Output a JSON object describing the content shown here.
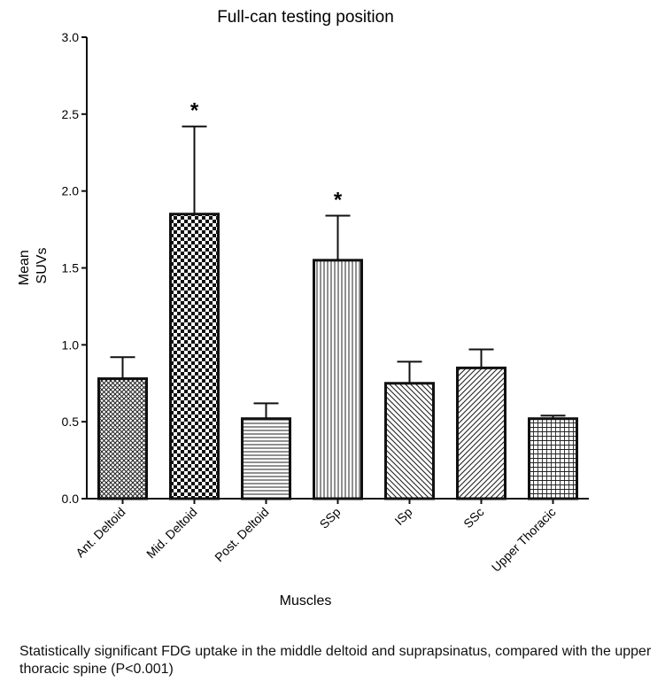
{
  "chart_data": {
    "type": "bar",
    "title": "Full-can testing position",
    "xlabel": "Muscles",
    "ylabel": [
      "Mean",
      "SUVs"
    ],
    "ylim": [
      0,
      3.0
    ],
    "yticks": [
      "0.0",
      "0.5",
      "1.0",
      "1.5",
      "2.0",
      "2.5",
      "3.0"
    ],
    "categories": [
      "Ant. Deltoid",
      "Mid. Deltoid",
      "Post. Deltoid",
      "SSp",
      "ISp",
      "SSc",
      "Upper Thoracic"
    ],
    "values": [
      0.78,
      1.85,
      0.52,
      1.55,
      0.75,
      0.85,
      0.52
    ],
    "error_upper": [
      0.92,
      2.42,
      0.62,
      1.84,
      0.89,
      0.97,
      0.54
    ],
    "significance": [
      "",
      "*",
      "",
      "*",
      "",
      "",
      ""
    ],
    "patterns": [
      "crosshatch-fine",
      "checkerboard",
      "horizontal-lines",
      "vertical-lines",
      "diagonal-down",
      "diagonal-up",
      "grid"
    ],
    "grid": false,
    "legend": "none"
  },
  "caption": "Statistically significant FDG uptake in the middle deltoid and suprapsinatus, compared with the upper thoracic spine (P<0.001)"
}
